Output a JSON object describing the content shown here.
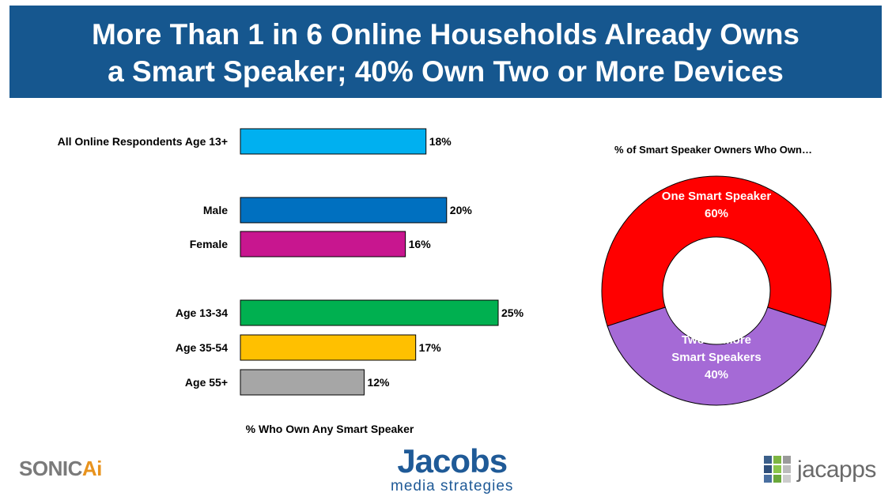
{
  "header": {
    "title_line1": "More Than 1 in 6 Online Households Already Owns",
    "title_line2": "a Smart Speaker; 40% Own Two or More Devices",
    "background": "#16578f"
  },
  "chart_data": [
    {
      "type": "bar",
      "orientation": "horizontal",
      "categories": [
        "All Online Respondents Age 13+",
        "Male",
        "Female",
        "Age 13-34",
        "Age 35-54",
        "Age 55+"
      ],
      "values": [
        18,
        20,
        16,
        25,
        17,
        12
      ],
      "data_labels": [
        "18%",
        "20%",
        "16%",
        "25%",
        "17%",
        "12%"
      ],
      "colors": [
        "#00b0f0",
        "#0070c0",
        "#c8168f",
        "#00b050",
        "#ffc000",
        "#a6a6a6"
      ],
      "xlabel": "% Who Own Any Smart Speaker",
      "title": "",
      "xlim": [
        0,
        25
      ],
      "grid": false
    },
    {
      "type": "pie",
      "variant": "donut",
      "title": "% of Smart Speaker Owners Who Own…",
      "slices": [
        {
          "label_lines": [
            "One Smart Speaker",
            "60%"
          ],
          "value": 60,
          "color": "#ff0000"
        },
        {
          "label_lines": [
            "Two or More",
            "Smart Speakers",
            "40%"
          ],
          "value": 40,
          "color": "#a56ad6"
        }
      ]
    }
  ],
  "logos": {
    "sonic_main": "SONIC",
    "sonic_ai": "Ai",
    "jacobs_main": "Jacobs",
    "jacobs_sub": "media strategies",
    "jacapps": "jacapps",
    "jacapps_colors": [
      "#3b5f8a",
      "#7db542",
      "#9a9a9a",
      "#2f4f7a",
      "#8ac54a",
      "#bbbbbb",
      "#4a6fa0",
      "#6aa83a",
      "#cccccc"
    ]
  }
}
